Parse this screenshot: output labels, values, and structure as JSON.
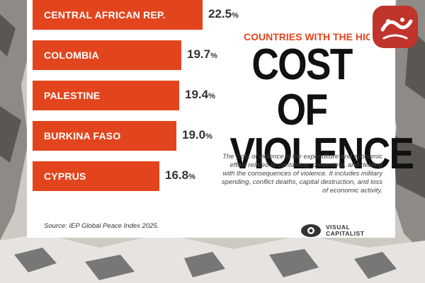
{
  "chart_data": {
    "type": "bar",
    "orientation": "horizontal",
    "title": "COST OF VIOLENCE",
    "kicker": "COUNTRIES WITH THE HIGHE",
    "categories": [
      "CENTRAL AFRICAN REP.",
      "COLOMBIA",
      "PALESTINE",
      "BURKINA FASO",
      "CYPRUS"
    ],
    "values": [
      22.5,
      19.7,
      19.4,
      19.0,
      16.8
    ],
    "value_labels": [
      "22.5",
      "19.7",
      "19.4",
      "19.0",
      "16.8"
    ],
    "unit": "%",
    "bar_color": "#e2451d",
    "xlim": [
      0,
      22.5
    ]
  },
  "headline": {
    "line1": "COST OF",
    "line2": "VIOLENCE"
  },
  "description": "The Cost of violence is the expenditure and economic effect related to containing, preventing, and dealing with the consequences of violence. It includes military spending, conflict deaths, capital destruction, and loss of economic activity.",
  "source": "Source: IEP Global Peace Index 2025.",
  "brand": {
    "line1": "VISUAL",
    "line2": "CAPITALIST"
  },
  "icons": {
    "brand_logo": "visual-capitalist-logo-icon",
    "corner_logo": "site-watermark-logo"
  },
  "colors": {
    "accent": "#e2451d",
    "text": "#111111",
    "background": "#ffffff"
  }
}
